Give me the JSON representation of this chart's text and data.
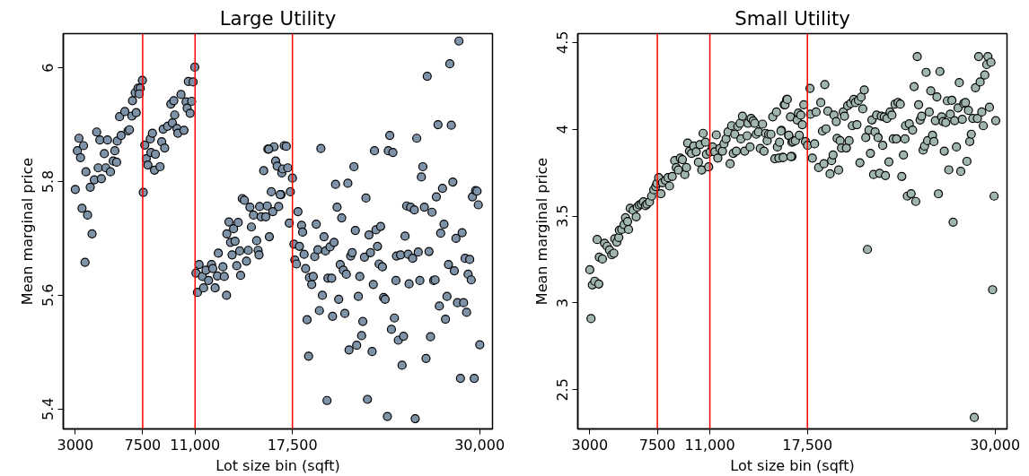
{
  "chart_data": [
    {
      "type": "scatter",
      "title": "Large Utility",
      "xlabel": "Lot size bin (sqft)",
      "ylabel": "Mean marginal price",
      "marker": "circle",
      "grid": false,
      "xlim": [
        2200,
        30860
      ],
      "ylim": [
        5.365,
        6.06
      ],
      "xticks": [
        3000,
        7500,
        {
          "value": 11000,
          "label": "11,000"
        },
        {
          "value": 17500,
          "label": "17,500"
        },
        {
          "value": 30000,
          "label": "30,000"
        }
      ],
      "yticks": [
        5.4,
        5.6,
        5.8,
        6
      ],
      "ref_lines": [
        {
          "axis": "x",
          "value": 7500,
          "color": "#ff0000"
        },
        {
          "axis": "x",
          "value": 11000,
          "color": "#ff0000"
        },
        {
          "axis": "x",
          "value": 17500,
          "color": "#ff0000"
        }
      ],
      "series": [
        {
          "color": "#7f93a8",
          "x": [
            3000,
            3140,
            3245,
            3550,
            3350,
            3450,
            3650,
            3820,
            4120,
            3710,
            4000,
            4270,
            4430,
            4530,
            4740,
            4640,
            4940,
            5040,
            5150,
            5350,
            5530,
            5640,
            5760,
            5800,
            5960,
            6060,
            6310,
            6520,
            6620,
            6820,
            6780,
            7000,
            7070,
            7190,
            7340,
            7270,
            7480,
            7540,
            7640,
            7740,
            7850,
            8010,
            8150,
            8050,
            8350,
            8290,
            8660,
            8770,
            8970,
            8870,
            9170,
            9380,
            9480,
            9580,
            9640,
            9790,
            9850,
            10060,
            10260,
            10400,
            10470,
            10670,
            10550,
            10770,
            10870,
            10980,
            11060,
            11270,
            11160,
            11490,
            11570,
            11730,
            11900,
            12100,
            12180,
            12340,
            12490,
            12550,
            12860,
            12950,
            13100,
            13120,
            13260,
            13370,
            13470,
            13570,
            13670,
            13780,
            13880,
            13980,
            14040,
            14150,
            14290,
            14430,
            14550,
            14660,
            14760,
            14900,
            15110,
            15210,
            15310,
            15270,
            15410,
            15580,
            15720,
            15820,
            15860,
            15960,
            16090,
            16190,
            16270,
            16380,
            16480,
            16580,
            16740,
            16790,
            16850,
            16950,
            15920,
            16680,
            17090,
            17190,
            17360,
            17290,
            17500,
            17600,
            17660,
            17770,
            17870,
            17970,
            18110,
            18180,
            18280,
            18380,
            18480,
            18580,
            18640,
            18790,
            18890,
            18990,
            19090,
            19200,
            19300,
            19400,
            19500,
            19610,
            19710,
            19810,
            19870,
            20010,
            20120,
            20180,
            20280,
            20380,
            20480,
            20590,
            20690,
            20790,
            20900,
            21000,
            21100,
            21200,
            21280,
            21390,
            21490,
            21610,
            21700,
            21790,
            21900,
            22000,
            22120,
            22200,
            22310,
            22410,
            22510,
            22610,
            22710,
            22820,
            22900,
            22980,
            23080,
            23180,
            23290,
            23390,
            23510,
            23590,
            23690,
            23840,
            23900,
            24000,
            24110,
            24210,
            24310,
            24410,
            24450,
            24570,
            24720,
            24820,
            24920,
            25020,
            25130,
            25230,
            25290,
            25390,
            25530,
            25640,
            25700,
            25800,
            25900,
            26010,
            26110,
            26210,
            26310,
            26420,
            26500,
            26620,
            26720,
            26820,
            26930,
            27030,
            27110,
            27220,
            27310,
            27400,
            27520,
            27620,
            27720,
            27820,
            27920,
            28010,
            28110,
            28210,
            28310,
            28420,
            28520,
            28620,
            28720,
            28830,
            28930,
            29030,
            29130,
            29230,
            29340,
            29440,
            29520,
            29640,
            29730,
            29830,
            29910,
            30010
          ],
          "values": [
            5.786,
            5.854,
            5.876,
            5.863,
            5.842,
            5.753,
            5.658,
            5.741,
            5.708,
            5.817,
            5.79,
            5.803,
            5.887,
            5.824,
            5.805,
            5.873,
            5.849,
            5.824,
            5.873,
            5.817,
            5.836,
            5.854,
            5.834,
            5.871,
            5.914,
            5.881,
            5.923,
            5.889,
            5.891,
            5.942,
            5.915,
            5.956,
            5.921,
            5.964,
            5.964,
            5.954,
            5.978,
            5.781,
            5.864,
            5.84,
            5.829,
            5.875,
            5.885,
            5.851,
            5.848,
            5.82,
            5.826,
            5.87,
            5.859,
            5.892,
            5.897,
            5.936,
            5.903,
            5.942,
            5.917,
            5.893,
            5.885,
            5.953,
            5.89,
            5.94,
            5.929,
            5.92,
            5.976,
            5.941,
            5.975,
            6.001,
            5.639,
            5.654,
            5.605,
            5.633,
            5.613,
            5.644,
            5.626,
            5.654,
            5.647,
            5.613,
            5.634,
            5.674,
            5.65,
            5.633,
            5.6,
            5.708,
            5.729,
            5.693,
            5.671,
            5.717,
            5.695,
            5.652,
            5.728,
            5.678,
            5.635,
            5.77,
            5.767,
            5.66,
            5.679,
            5.755,
            5.72,
            5.741,
            5.696,
            5.679,
            5.756,
            5.671,
            5.738,
            5.819,
            5.738,
            5.757,
            5.857,
            5.703,
            5.782,
            5.747,
            5.861,
            5.836,
            5.827,
            5.756,
            5.777,
            5.815,
            5.822,
            5.863,
            5.857,
            5.777,
            5.862,
            5.824,
            5.782,
            5.727,
            5.806,
            5.69,
            5.662,
            5.655,
            5.747,
            5.686,
            5.723,
            5.711,
            5.672,
            5.647,
            5.557,
            5.493,
            5.631,
            5.619,
            5.633,
            5.668,
            5.725,
            5.68,
            5.573,
            5.858,
            5.6,
            5.703,
            5.678,
            5.415,
            5.63,
            5.685,
            5.63,
            5.563,
            5.693,
            5.795,
            5.755,
            5.593,
            5.654,
            5.736,
            5.644,
            5.568,
            5.637,
            5.797,
            5.504,
            5.669,
            5.675,
            5.826,
            5.714,
            5.512,
            5.598,
            5.633,
            5.529,
            5.554,
            5.667,
            5.771,
            5.417,
            5.706,
            5.675,
            5.501,
            5.619,
            5.854,
            5.715,
            5.686,
            5.655,
            5.721,
            5.65,
            5.596,
            5.593,
            5.387,
            5.854,
            5.881,
            5.54,
            5.851,
            5.56,
            5.626,
            5.669,
            5.521,
            5.671,
            5.477,
            5.528,
            5.704,
            5.757,
            5.672,
            5.62,
            5.755,
            5.665,
            5.75,
            5.383,
            5.876,
            5.676,
            5.626,
            5.808,
            5.826,
            5.755,
            5.489,
            5.985,
            5.677,
            5.527,
            5.746,
            5.626,
            5.627,
            5.773,
            5.9,
            5.581,
            5.709,
            5.788,
            5.725,
            5.558,
            5.598,
            5.654,
            6.007,
            5.899,
            5.799,
            5.643,
            5.7,
            5.587,
            6.047,
            5.454,
            5.71,
            5.587,
            5.665,
            5.57,
            5.637,
            5.663,
            5.627,
            5.773,
            5.454,
            5.784,
            5.783,
            5.759,
            5.513
          ]
        }
      ]
    },
    {
      "type": "scatter",
      "title": "Small Utility",
      "xlabel": "Lot size bin (sqft)",
      "ylabel": "Mean marginal price",
      "marker": "circle",
      "grid": false,
      "xlim": [
        2200,
        30800
      ],
      "ylim": [
        2.275,
        4.55
      ],
      "xticks": [
        3000,
        7500,
        {
          "value": 11000,
          "label": "11,000"
        },
        {
          "value": 17500,
          "label": "17,500"
        },
        {
          "value": 30000,
          "label": "30,000"
        }
      ],
      "yticks": [
        2.5,
        3,
        3.5,
        4,
        4.5
      ],
      "ref_lines": [
        {
          "axis": "x",
          "value": 7500,
          "color": "#ff0000"
        },
        {
          "axis": "x",
          "value": 11000,
          "color": "#ff0000"
        },
        {
          "axis": "x",
          "value": 17500,
          "color": "#ff0000"
        }
      ],
      "series": [
        {
          "color": "#9fb5ae",
          "x": [
            3000,
            3080,
            3170,
            3330,
            3600,
            3490,
            3630,
            3840,
            3980,
            4150,
            4310,
            4460,
            4600,
            4660,
            4800,
            4930,
            4970,
            5130,
            5280,
            5380,
            5580,
            5520,
            5690,
            5890,
            6090,
            6160,
            6300,
            6440,
            6570,
            6710,
            6810,
            6980,
            7120,
            7260,
            7390,
            7470,
            7590,
            7740,
            7840,
            8040,
            8210,
            8310,
            8490,
            8660,
            8760,
            8900,
            9030,
            9170,
            9330,
            9440,
            9520,
            9640,
            9780,
            9930,
            10090,
            10240,
            10340,
            10460,
            10550,
            10710,
            10770,
            10920,
            11020,
            11180,
            11330,
            11430,
            11530,
            11670,
            11840,
            11940,
            12080,
            12210,
            12350,
            12450,
            12560,
            12660,
            12760,
            12860,
            13010,
            13070,
            13170,
            13320,
            13480,
            13540,
            13680,
            13750,
            13890,
            13990,
            14090,
            14240,
            14360,
            14510,
            14610,
            14710,
            14820,
            14920,
            15070,
            15190,
            15330,
            15440,
            15500,
            15640,
            15770,
            15850,
            15950,
            16120,
            16260,
            16370,
            16470,
            16470,
            15600,
            15740,
            15890,
            16010,
            16160,
            16260,
            16400,
            16550,
            16700,
            16820,
            16900,
            16960,
            17060,
            17160,
            17260,
            17370,
            17510,
            17670,
            17710,
            17830,
            17980,
            18080,
            18250,
            18390,
            18500,
            18600,
            18660,
            18740,
            18860,
            19010,
            19110,
            19210,
            19270,
            19420,
            19480,
            19580,
            19680,
            19770,
            19890,
            19970,
            20100,
            20180,
            20280,
            20390,
            20490,
            20590,
            20700,
            20800,
            20900,
            21000,
            21080,
            21190,
            21290,
            21390,
            21500,
            21600,
            21700,
            21800,
            21910,
            22010,
            22110,
            22210,
            22310,
            22420,
            22520,
            22620,
            22700,
            22800,
            22930,
            23010,
            23130,
            23220,
            23340,
            23440,
            23540,
            23690,
            23790,
            23900,
            24000,
            24040,
            24160,
            24290,
            24410,
            24510,
            24610,
            24720,
            24820,
            24910,
            25010,
            25110,
            25210,
            25310,
            25410,
            25510,
            25620,
            25720,
            25840,
            25930,
            26030,
            26130,
            26230,
            26330,
            26440,
            26540,
            26620,
            26720,
            26820,
            26920,
            27020,
            27130,
            27210,
            27310,
            27430,
            27540,
            27620,
            27720,
            27820,
            27920,
            28030,
            28130,
            28230,
            28320,
            28420,
            28520,
            28620,
            28700,
            28830,
            28910,
            29010,
            29120,
            29220,
            29320,
            29450,
            29530,
            29630,
            29730,
            29840,
            29940,
            30050
          ],
          "values": [
            3.191,
            2.91,
            3.104,
            3.125,
            3.109,
            3.365,
            3.264,
            3.253,
            3.344,
            3.326,
            3.305,
            3.277,
            3.286,
            3.369,
            3.35,
            3.377,
            3.418,
            3.423,
            3.451,
            3.491,
            3.423,
            3.469,
            3.545,
            3.533,
            3.496,
            3.551,
            3.564,
            3.569,
            3.582,
            3.56,
            3.569,
            3.582,
            3.615,
            3.651,
            3.67,
            3.688,
            3.721,
            3.629,
            3.692,
            3.706,
            3.721,
            3.673,
            3.728,
            3.819,
            3.779,
            3.765,
            3.834,
            3.825,
            3.739,
            3.779,
            3.92,
            3.874,
            3.861,
            3.903,
            3.87,
            3.81,
            3.911,
            3.765,
            3.976,
            3.925,
            3.856,
            3.783,
            3.87,
            3.898,
            3.87,
            3.967,
            3.834,
            3.889,
            3.874,
            3.916,
            3.944,
            3.984,
            3.801,
            4.02,
            3.861,
            3.971,
            3.874,
            4.016,
            4.034,
            3.944,
            4.075,
            3.874,
            3.962,
            4.034,
            3.898,
            4.062,
            4.048,
            4.034,
            3.971,
            3.984,
            3.889,
            4.029,
            3.874,
            3.976,
            3.934,
            3.971,
            3.971,
            4.071,
            3.83,
            4.099,
            3.898,
            3.925,
            3.993,
            3.837,
            4.141,
            4.171,
            3.962,
            4.071,
            3.925,
            3.843,
            3.834,
            3.989,
            3.837,
            4.141,
            4.171,
            3.965,
            3.843,
            3.929,
            3.934,
            4.053,
            4.093,
            3.965,
            4.081,
            4.026,
            4.141,
            3.929,
            3.907,
            4.235,
            4.086,
            3.834,
            3.916,
            4.099,
            3.779,
            4.153,
            3.989,
            3.801,
            4.257,
            4.002,
            4.104,
            3.743,
            3.819,
            3.852,
            4.081,
            4.044,
            3.947,
            3.765,
            3.934,
            3.892,
            4.099,
            4.075,
            3.892,
            4.135,
            3.934,
            4.148,
            4.02,
            4.171,
            4.153,
            4.026,
            4.166,
            3.807,
            4.185,
            4.117,
            4.226,
            3.952,
            3.308,
            3.995,
            3.861,
            4.053,
            3.739,
            3.984,
            4.081,
            3.952,
            3.746,
            4.075,
            3.907,
            4.071,
            3.733,
            4.062,
            3.812,
            4.099,
            4.081,
            3.944,
            4.144,
            3.944,
            4.153,
            4.144,
            3.728,
            3.852,
            3.944,
            4.02,
            3.615,
            4.031,
            3.629,
            3.995,
            4.245,
            3.584,
            4.418,
            4.141,
            4.053,
            4.075,
            3.88,
            3.903,
            4.327,
            3.934,
            4.099,
            4.221,
            3.965,
            3.929,
            4.049,
            4.186,
            3.628,
            4.332,
            4.071,
            4.044,
            3.874,
            4.038,
            4.163,
            3.766,
            4.086,
            4.166,
            3.465,
            4.049,
            3.898,
            4.122,
            4.268,
            3.757,
            4.057,
            4.148,
            4.153,
            3.815,
            4.108,
            3.929,
            3.971,
            4.062,
            2.341,
            4.239,
            4.062,
            4.418,
            4.272,
            4.099,
            4.02,
            4.312,
            4.372,
            4.418,
            4.126,
            4.385,
            3.076,
            3.615,
            4.049
          ]
        }
      ]
    }
  ]
}
